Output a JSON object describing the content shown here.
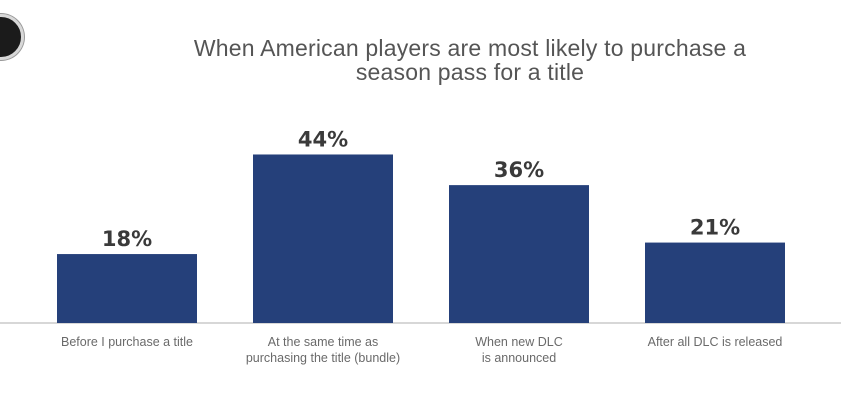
{
  "chart_data": {
    "type": "bar",
    "title_lines": [
      "When American players are most likely to purchase a",
      "season pass for a title"
    ],
    "categories": [
      [
        "Before I purchase a title"
      ],
      [
        "At the same time as",
        "purchasing the title (bundle)"
      ],
      [
        "When new DLC",
        "is announced"
      ],
      [
        "After all DLC is released"
      ]
    ],
    "values": [
      18,
      44,
      36,
      21
    ],
    "value_labels": [
      "18%",
      "44%",
      "36%",
      "21%"
    ],
    "ylim": [
      0,
      50
    ],
    "grid": false,
    "legend": "none",
    "bar_color": "#25407a"
  }
}
